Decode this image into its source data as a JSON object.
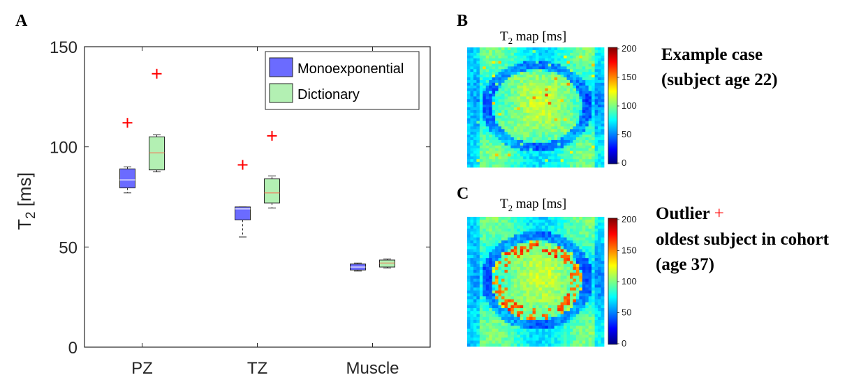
{
  "panels": {
    "a": "A",
    "b": "B",
    "c": "C"
  },
  "chart_data": {
    "type": "box",
    "ylabel_main": "T",
    "ylabel_sub": "2",
    "ylabel_unit": " [ms]",
    "ylim": [
      0,
      150
    ],
    "yticks": [
      0,
      50,
      100,
      150
    ],
    "categories": [
      "PZ",
      "TZ",
      "Muscle"
    ],
    "legend_position": "top-right",
    "series": [
      {
        "name": "Monoexponential",
        "color": "#6b6bff",
        "boxes": [
          {
            "min": 77,
            "q1": 79.5,
            "median": 83.5,
            "q3": 89,
            "max": 90,
            "outliers": [
              112
            ]
          },
          {
            "min": 55,
            "q1": 63.5,
            "median": 69,
            "q3": 70,
            "max": 70,
            "outliers": [
              91
            ]
          },
          {
            "min": 38,
            "q1": 38.5,
            "median": 40,
            "q3": 41.5,
            "max": 42,
            "outliers": []
          }
        ]
      },
      {
        "name": "Dictionary",
        "color": "#b3f0b3",
        "boxes": [
          {
            "min": 87.5,
            "q1": 88.5,
            "median": 97,
            "q3": 105,
            "max": 106,
            "outliers": [
              136.5
            ]
          },
          {
            "min": 69.5,
            "q1": 72,
            "median": 77,
            "q3": 84,
            "max": 85.5,
            "outliers": [
              105.5
            ]
          },
          {
            "min": 39.5,
            "q1": 40,
            "median": 42,
            "q3": 43.5,
            "max": 44,
            "outliers": []
          }
        ]
      }
    ]
  },
  "map_b": {
    "title_main": "T",
    "title_sub": "2",
    "title_unit": " map [ms]",
    "colorbar_ticks": [
      0,
      50,
      100,
      150,
      200
    ],
    "note_line1": "Example case",
    "note_line2": "(subject age 22)"
  },
  "map_c": {
    "title_main": "T",
    "title_sub": "2",
    "title_unit": " map [ms]",
    "colorbar_ticks": [
      0,
      50,
      100,
      150,
      200
    ],
    "note_line1": "Outlier",
    "note_marker": "+",
    "note_line2": "oldest subject in cohort",
    "note_line3": "(age 37)"
  },
  "colors": {
    "outlier": "#ff0000",
    "axis": "#262626"
  }
}
